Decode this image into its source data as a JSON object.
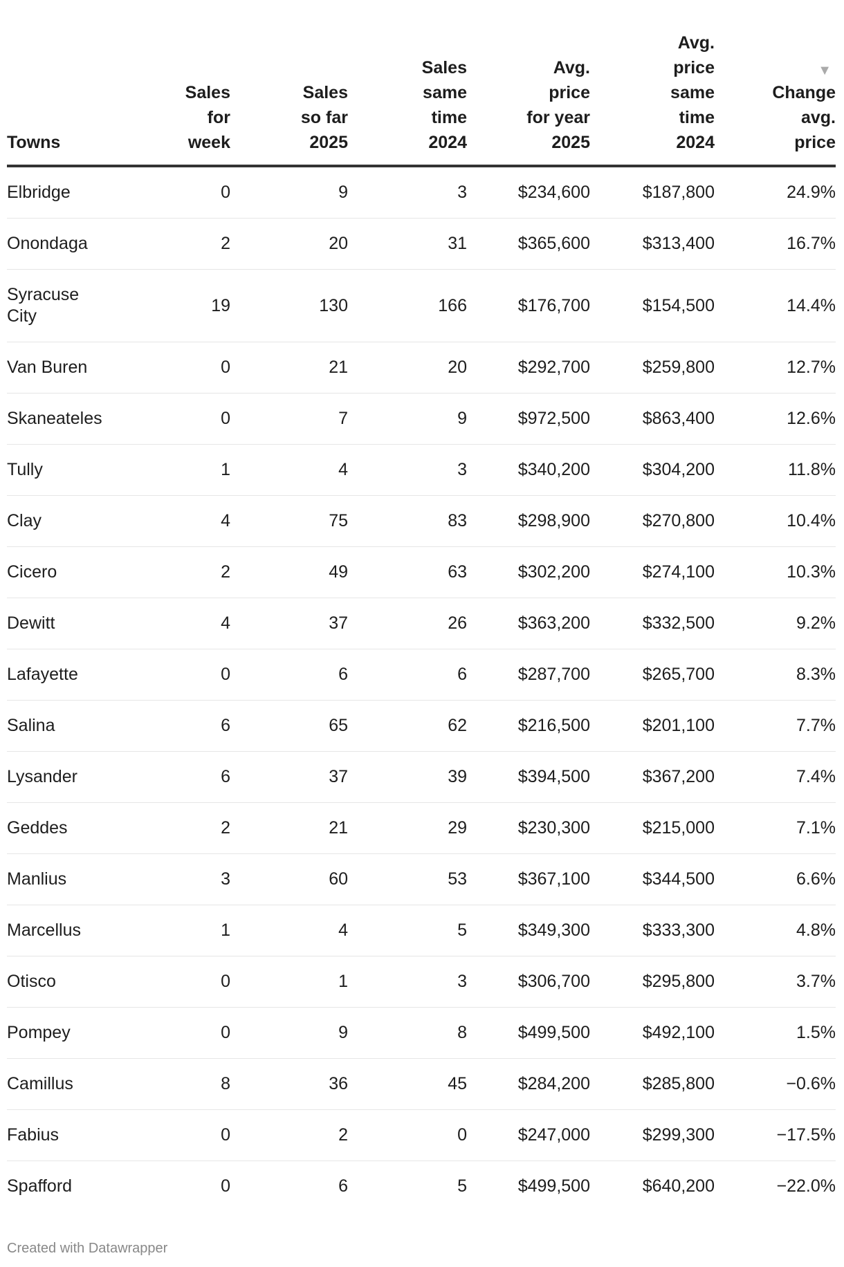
{
  "table": {
    "headers": [
      [
        "Towns"
      ],
      [
        "Sales",
        "for",
        "week"
      ],
      [
        "Sales",
        "so far",
        "2025"
      ],
      [
        "Sales",
        "same",
        "time",
        "2024"
      ],
      [
        "Avg.",
        "price",
        "for year",
        "2025"
      ],
      [
        "Avg.",
        "price",
        "same",
        "time",
        "2024"
      ],
      [
        "Change",
        "avg.",
        "price"
      ]
    ],
    "sort_icon": "triangle-down-icon",
    "sorted_column": "Change avg. price",
    "rows": [
      [
        "Elbridge",
        "0",
        "9",
        "3",
        "$234,600",
        "$187,800",
        "24.9%"
      ],
      [
        "Onondaga",
        "2",
        "20",
        "31",
        "$365,600",
        "$313,400",
        "16.7%"
      ],
      [
        "Syracuse City",
        "19",
        "130",
        "166",
        "$176,700",
        "$154,500",
        "14.4%"
      ],
      [
        "Van Buren",
        "0",
        "21",
        "20",
        "$292,700",
        "$259,800",
        "12.7%"
      ],
      [
        "Skaneateles",
        "0",
        "7",
        "9",
        "$972,500",
        "$863,400",
        "12.6%"
      ],
      [
        "Tully",
        "1",
        "4",
        "3",
        "$340,200",
        "$304,200",
        "11.8%"
      ],
      [
        "Clay",
        "4",
        "75",
        "83",
        "$298,900",
        "$270,800",
        "10.4%"
      ],
      [
        "Cicero",
        "2",
        "49",
        "63",
        "$302,200",
        "$274,100",
        "10.3%"
      ],
      [
        "Dewitt",
        "4",
        "37",
        "26",
        "$363,200",
        "$332,500",
        "9.2%"
      ],
      [
        "Lafayette",
        "0",
        "6",
        "6",
        "$287,700",
        "$265,700",
        "8.3%"
      ],
      [
        "Salina",
        "6",
        "65",
        "62",
        "$216,500",
        "$201,100",
        "7.7%"
      ],
      [
        "Lysander",
        "6",
        "37",
        "39",
        "$394,500",
        "$367,200",
        "7.4%"
      ],
      [
        "Geddes",
        "2",
        "21",
        "29",
        "$230,300",
        "$215,000",
        "7.1%"
      ],
      [
        "Manlius",
        "3",
        "60",
        "53",
        "$367,100",
        "$344,500",
        "6.6%"
      ],
      [
        "Marcellus",
        "1",
        "4",
        "5",
        "$349,300",
        "$333,300",
        "4.8%"
      ],
      [
        "Otisco",
        "0",
        "1",
        "3",
        "$306,700",
        "$295,800",
        "3.7%"
      ],
      [
        "Pompey",
        "0",
        "9",
        "8",
        "$499,500",
        "$492,100",
        "1.5%"
      ],
      [
        "Camillus",
        "8",
        "36",
        "45",
        "$284,200",
        "$285,800",
        "−0.6%"
      ],
      [
        "Fabius",
        "0",
        "2",
        "0",
        "$247,000",
        "$299,300",
        "−17.5%"
      ],
      [
        "Spafford",
        "0",
        "6",
        "5",
        "$499,500",
        "$640,200",
        "−22.0%"
      ]
    ]
  },
  "footer": "Created with Datawrapper"
}
